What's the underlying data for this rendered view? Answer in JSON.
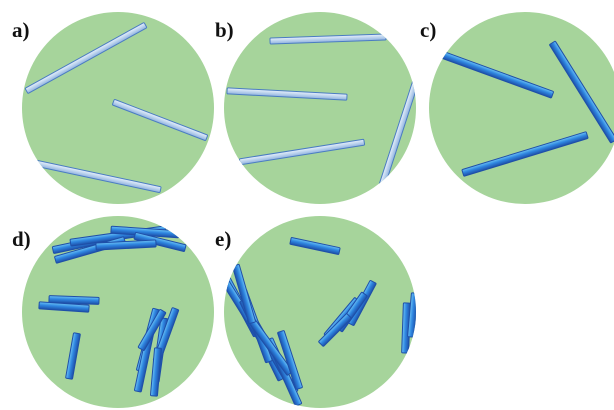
{
  "panels": [
    {
      "label": "a)",
      "fiber_style": "pale"
    },
    {
      "label": "b)",
      "fiber_style": "pale"
    },
    {
      "label": "c)",
      "fiber_style": "blue"
    },
    {
      "label": "d)",
      "fiber_style": "blue"
    },
    {
      "label": "e)",
      "fiber_style": "blue"
    }
  ],
  "colors": {
    "background": "#ffffff",
    "dish": "#a6d49b",
    "pale_fill": "#bcd3ee",
    "pale_edge": "#4a7cc2",
    "blue_fill": "#2f74d6",
    "blue_light": "#49a8ee",
    "blue_edge": "#1f4fa8",
    "label": "#111111"
  }
}
